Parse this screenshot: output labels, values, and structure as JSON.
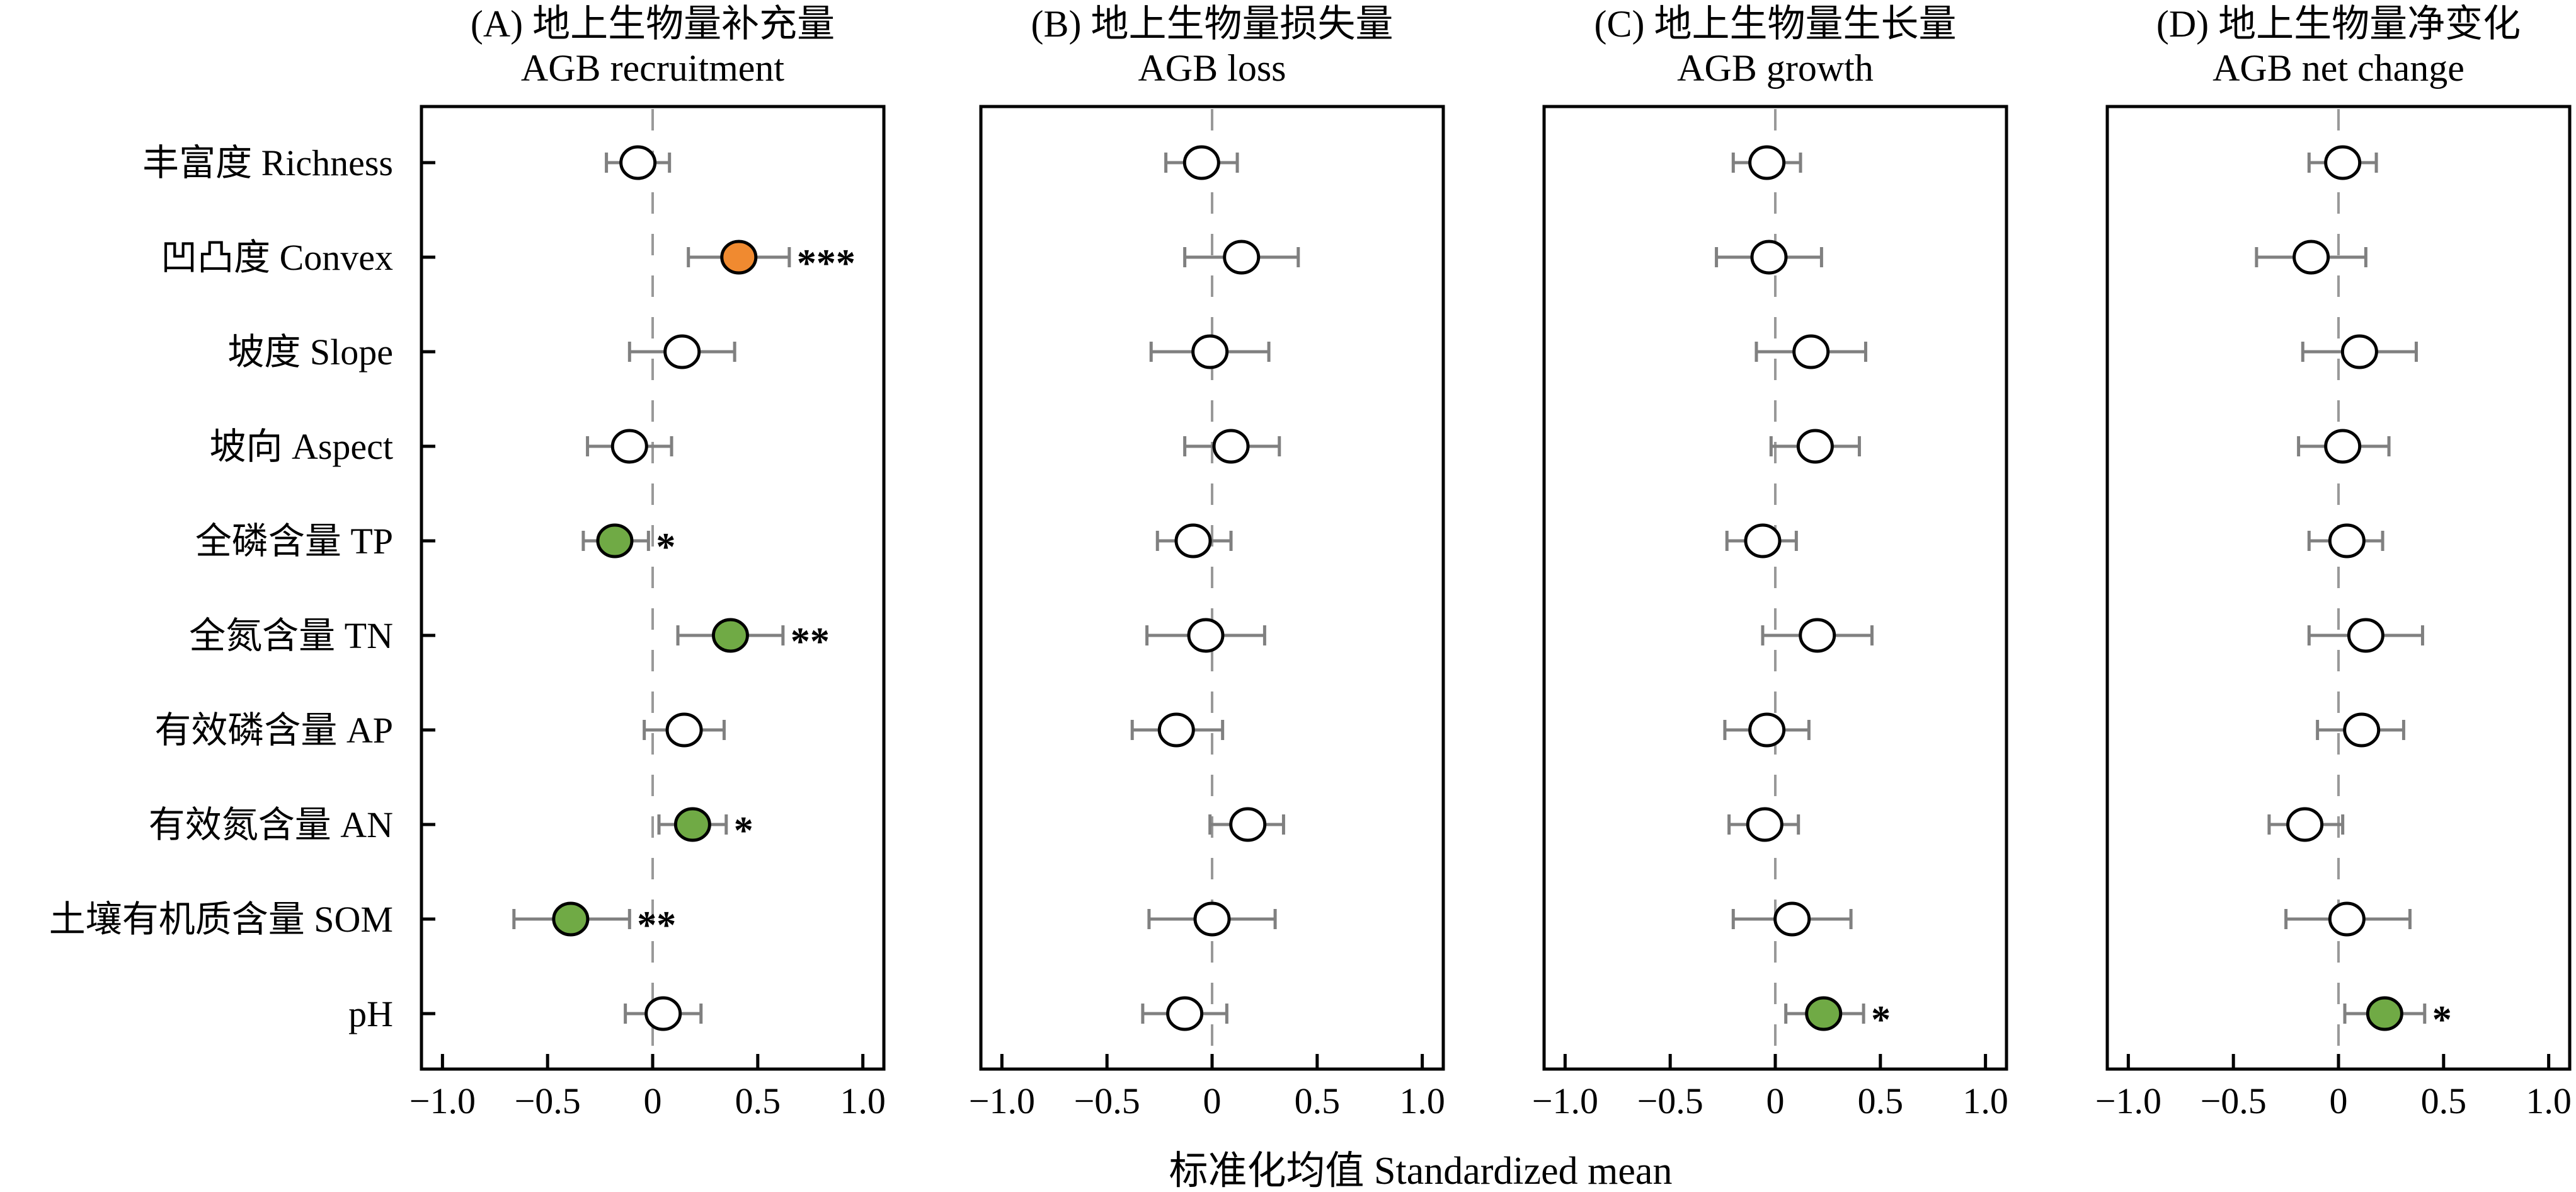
{
  "chart_data": {
    "type": "forest",
    "xlabel": "标准化均值 Standardized mean",
    "xlim": [
      -1.1,
      1.1
    ],
    "xticks": [
      -1.0,
      -0.5,
      0,
      0.5,
      1.0
    ],
    "xtick_labels": [
      "−1.0",
      "−0.5",
      "0",
      "0.5",
      "1.0"
    ],
    "reference_line": 0,
    "colors": {
      "positive_significant": "#F08A30",
      "negative_or_green_significant": "#70AA45",
      "nonsignificant_fill": "#ffffff",
      "errorbar": "#808080",
      "reference_line": "#999999"
    },
    "categories": [
      "丰富度 Richness",
      "凹凸度 Convex",
      "坡度 Slope",
      "坡向 Aspect",
      "全磷含量 TP",
      "全氮含量 TN",
      "有效磷含量 AP",
      "有效氮含量 AN",
      "土壤有机质含量 SOM",
      "pH"
    ],
    "panels": [
      {
        "label": "(A) 地上生物量补充量",
        "subtitle": "AGB recruitment",
        "means": [
          -0.07,
          0.41,
          0.14,
          -0.11,
          -0.18,
          0.37,
          0.15,
          0.19,
          -0.39,
          0.05
        ],
        "lower": [
          -0.22,
          0.17,
          -0.11,
          -0.31,
          -0.33,
          0.12,
          -0.04,
          0.03,
          -0.66,
          -0.13
        ],
        "upper": [
          0.08,
          0.65,
          0.39,
          0.09,
          -0.02,
          0.62,
          0.34,
          0.35,
          -0.11,
          0.23
        ],
        "fill": [
          "none",
          "orange",
          "none",
          "none",
          "green",
          "green",
          "none",
          "green",
          "green",
          "none"
        ],
        "significance": [
          "",
          "***",
          "",
          "",
          "*",
          "**",
          "",
          "*",
          "**",
          ""
        ]
      },
      {
        "label": "(B) 地上生物量损失量",
        "subtitle": "AGB loss",
        "means": [
          -0.05,
          0.14,
          -0.01,
          0.09,
          -0.09,
          -0.03,
          -0.17,
          0.17,
          0.0,
          -0.13
        ],
        "lower": [
          -0.22,
          -0.13,
          -0.29,
          -0.13,
          -0.26,
          -0.31,
          -0.38,
          -0.01,
          -0.3,
          -0.33
        ],
        "upper": [
          0.12,
          0.41,
          0.27,
          0.32,
          0.09,
          0.25,
          0.05,
          0.34,
          0.3,
          0.07
        ],
        "fill": [
          "none",
          "none",
          "none",
          "none",
          "none",
          "none",
          "none",
          "none",
          "none",
          "none"
        ],
        "significance": [
          "",
          "",
          "",
          "",
          "",
          "",
          "",
          "",
          "",
          ""
        ]
      },
      {
        "label": "(C) 地上生物量生长量",
        "subtitle": "AGB growth",
        "means": [
          -0.04,
          -0.03,
          0.17,
          0.19,
          -0.06,
          0.2,
          -0.04,
          -0.05,
          0.08,
          0.23
        ],
        "lower": [
          -0.2,
          -0.28,
          -0.09,
          -0.02,
          -0.23,
          -0.06,
          -0.24,
          -0.22,
          -0.2,
          0.05
        ],
        "upper": [
          0.12,
          0.22,
          0.43,
          0.4,
          0.1,
          0.46,
          0.16,
          0.11,
          0.36,
          0.42
        ],
        "fill": [
          "none",
          "none",
          "none",
          "none",
          "none",
          "none",
          "none",
          "none",
          "none",
          "green"
        ],
        "significance": [
          "",
          "",
          "",
          "",
          "",
          "",
          "",
          "",
          "",
          "*"
        ]
      },
      {
        "label": "(D) 地上生物量净变化",
        "subtitle": "AGB net change",
        "means": [
          0.02,
          -0.13,
          0.1,
          0.02,
          0.04,
          0.13,
          0.11,
          -0.16,
          0.04,
          0.22
        ],
        "lower": [
          -0.14,
          -0.39,
          -0.17,
          -0.19,
          -0.14,
          -0.14,
          -0.1,
          -0.33,
          -0.25,
          0.03
        ],
        "upper": [
          0.18,
          0.13,
          0.37,
          0.24,
          0.21,
          0.4,
          0.31,
          0.02,
          0.34,
          0.41
        ],
        "fill": [
          "none",
          "none",
          "none",
          "none",
          "none",
          "none",
          "none",
          "none",
          "none",
          "green"
        ],
        "significance": [
          "",
          "",
          "",
          "",
          "",
          "",
          "",
          "",
          "",
          "*"
        ]
      }
    ]
  }
}
